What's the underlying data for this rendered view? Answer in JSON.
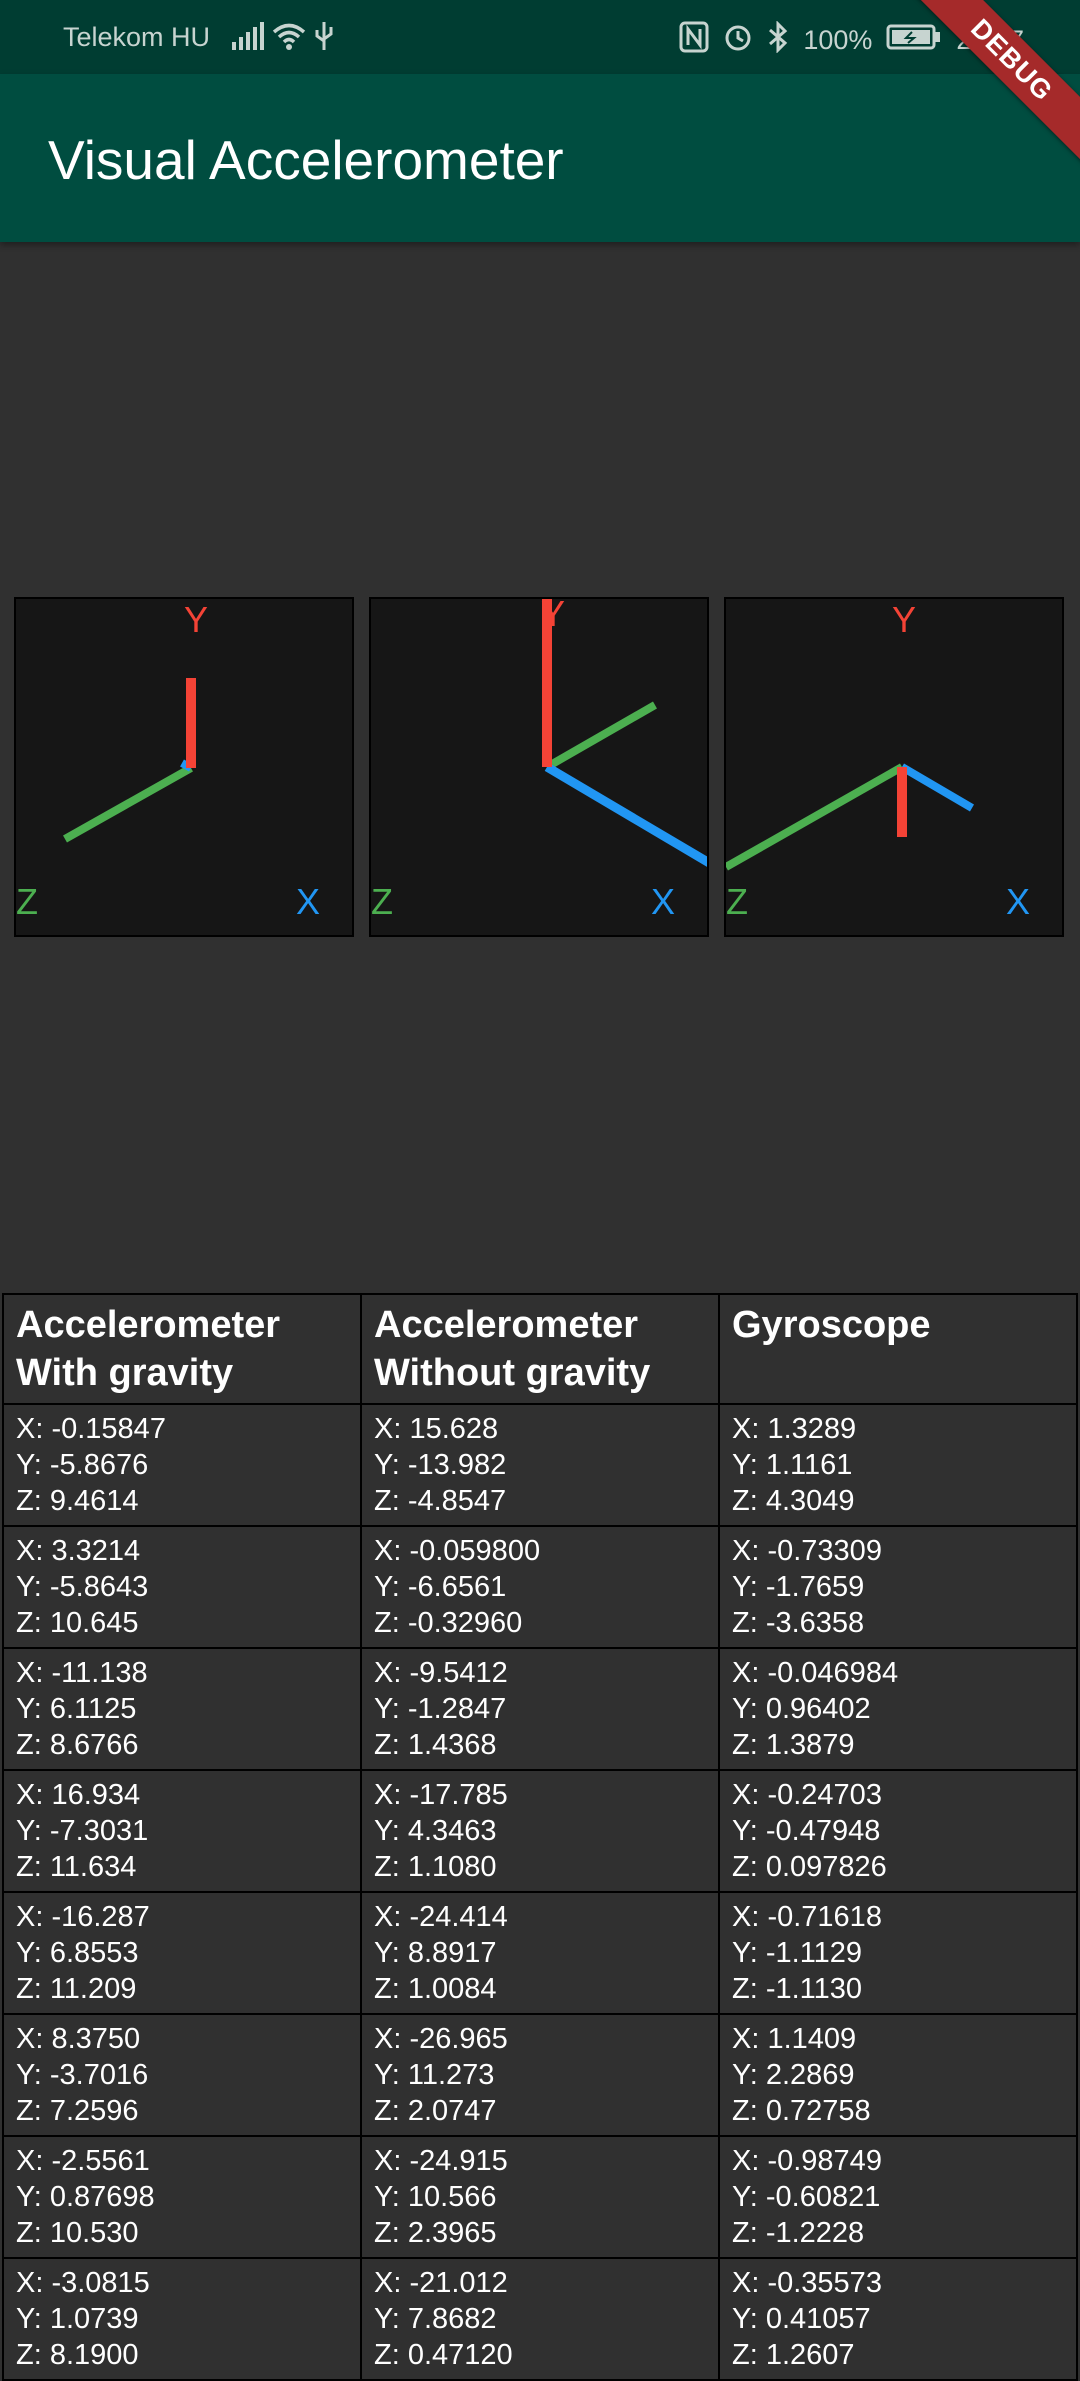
{
  "status_bar": {
    "carrier": "Telekom HU",
    "battery": "100%",
    "time": "20:07"
  },
  "app_bar": {
    "title": "Visual Accelerometer"
  },
  "debug_banner": "DEBUG",
  "axis_labels": {
    "x": "X",
    "y": "Y",
    "z": "Z"
  },
  "colors": {
    "x_axis": "#2196f3",
    "y_axis": "#f44336",
    "z_axis": "#4caf50"
  },
  "table": {
    "headers": [
      [
        "Accelerometer",
        "With gravity"
      ],
      [
        "Accelerometer",
        "Without gravity"
      ],
      [
        "Gyroscope",
        ""
      ]
    ],
    "rows": [
      [
        [
          "X: -0.15847",
          "Y: -5.8676",
          "Z: 9.4614"
        ],
        [
          "X: 15.628",
          "Y: -13.982",
          "Z: -4.8547"
        ],
        [
          "X: 1.3289",
          "Y: 1.1161",
          "Z: 4.3049"
        ]
      ],
      [
        [
          "X: 3.3214",
          "Y: -5.8643",
          "Z: 10.645"
        ],
        [
          "X: -0.059800",
          "Y: -6.6561",
          "Z: -0.32960"
        ],
        [
          "X: -0.73309",
          "Y: -1.7659",
          "Z: -3.6358"
        ]
      ],
      [
        [
          "X: -11.138",
          "Y: 6.1125",
          "Z: 8.6766"
        ],
        [
          "X: -9.5412",
          "Y: -1.2847",
          "Z: 1.4368"
        ],
        [
          "X: -0.046984",
          "Y: 0.96402",
          "Z: 1.3879"
        ]
      ],
      [
        [
          "X: 16.934",
          "Y: -7.3031",
          "Z: 11.634"
        ],
        [
          "X: -17.785",
          "Y: 4.3463",
          "Z: 1.1080"
        ],
        [
          "X: -0.24703",
          "Y: -0.47948",
          "Z: 0.097826"
        ]
      ],
      [
        [
          "X: -16.287",
          "Y: 6.8553",
          "Z: 11.209"
        ],
        [
          "X: -24.414",
          "Y: 8.8917",
          "Z: 1.0084"
        ],
        [
          "X: -0.71618",
          "Y: -1.1129",
          "Z: -1.1130"
        ]
      ],
      [
        [
          "X: 8.3750",
          "Y: -3.7016",
          "Z: 7.2596"
        ],
        [
          "X: -26.965",
          "Y: 11.273",
          "Z: 2.0747"
        ],
        [
          "X: 1.1409",
          "Y: 2.2869",
          "Z: 0.72758"
        ]
      ],
      [
        [
          "X: -2.5561",
          "Y: 0.87698",
          "Z: 10.530"
        ],
        [
          "X: -24.915",
          "Y: 10.566",
          "Z: 2.3965"
        ],
        [
          "X: -0.98749",
          "Y: -0.60821",
          "Z: -1.2228"
        ]
      ],
      [
        [
          "X: -3.0815",
          "Y: 1.0739",
          "Z: 8.1900"
        ],
        [
          "X: -21.012",
          "Y: 7.8682",
          "Z: 0.47120"
        ],
        [
          "X: -0.35573",
          "Y: 0.41057",
          "Z: 1.2607"
        ]
      ]
    ]
  }
}
